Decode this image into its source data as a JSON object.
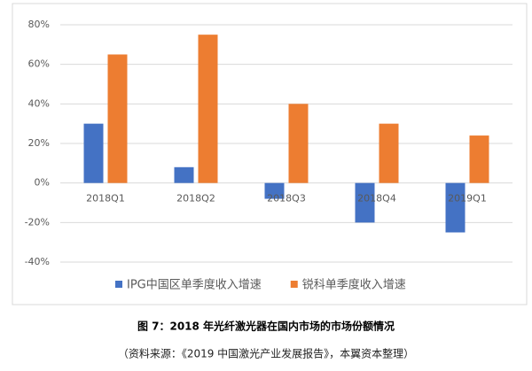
{
  "chart_data": {
    "type": "bar",
    "categories": [
      "2018Q1",
      "2018Q2",
      "2018Q3",
      "2018Q4",
      "2019Q1"
    ],
    "series": [
      {
        "name": "IPG中国区单季度收入增速",
        "color": "#4472c4",
        "values": [
          30,
          8,
          -8,
          -20,
          -25
        ]
      },
      {
        "name": "锐科单季度收入增速",
        "color": "#ed7d31",
        "values": [
          65,
          75,
          40,
          30,
          24
        ]
      }
    ],
    "ylim": [
      -40,
      80
    ],
    "yticks": [
      {
        "value": -40,
        "label": "-40%"
      },
      {
        "value": -20,
        "label": "-20%"
      },
      {
        "value": 0,
        "label": "0%"
      },
      {
        "value": 20,
        "label": "20%"
      },
      {
        "value": 40,
        "label": "40%"
      },
      {
        "value": 60,
        "label": "60%"
      },
      {
        "value": 80,
        "label": "80%"
      }
    ],
    "grid": true,
    "caption": "图 7：2018 年光纤激光器在国内市场的市场份额情况",
    "source": "（资料来源：《2019 中国激光产业发展报告》，本翼资本整理）"
  }
}
